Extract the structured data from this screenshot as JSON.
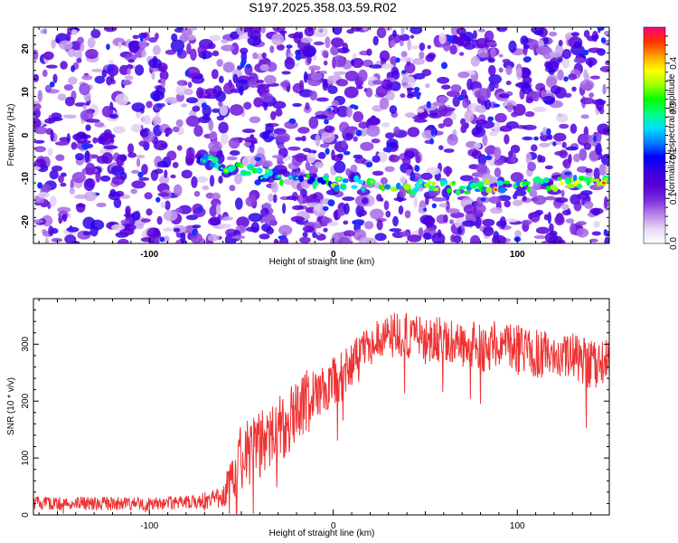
{
  "title": "S197.2025.358.03.59.R02",
  "chart_data": [
    {
      "type": "heatmap",
      "xlabel": "Height of straight line (km)",
      "ylabel": "Frequency (Hz)",
      "xlim": [
        -163,
        150
      ],
      "ylim": [
        -25,
        25
      ],
      "xticks": [
        -100,
        0,
        100
      ],
      "yticks": [
        -20,
        -10,
        0,
        10,
        20
      ],
      "colorbar": {
        "label": "Normalized spectral amplitude",
        "range": [
          0.0,
          0.48
        ],
        "ticks": [
          0.0,
          0.1,
          0.2,
          0.3,
          0.4
        ],
        "tick_labels": [
          "0.0",
          "0.1",
          "0.2",
          "0.3",
          "0.4"
        ],
        "colors": [
          "#ffffff",
          "#e8d8f4",
          "#b784e6",
          "#7a2fe0",
          "#5a00d8",
          "#3a00e0",
          "#0000ff",
          "#0080ff",
          "#00e0ff",
          "#00ff80",
          "#00ff00",
          "#a0ff00",
          "#ffff00",
          "#ffa000",
          "#ff3000",
          "#ff0080"
        ]
      },
      "signal_track": {
        "description_points_km": [
          -70,
          -50,
          -30,
          0,
          20,
          40,
          80,
          100,
          148
        ],
        "frequency_hz": [
          -6,
          -8,
          -10,
          -11,
          -11.5,
          -12,
          -12,
          -11.5,
          -11
        ]
      }
    },
    {
      "type": "line",
      "xlabel": "Height of straight line (km)",
      "ylabel": "SNR (10 * v/v)",
      "xlim": [
        -163,
        150
      ],
      "ylim": [
        0,
        380
      ],
      "xticks": [
        -100,
        0,
        100
      ],
      "yticks": [
        0,
        100,
        200,
        300
      ],
      "series": [
        {
          "name": "SNR",
          "color": "#ee3333",
          "x": [
            -163,
            -140,
            -120,
            -100,
            -80,
            -60,
            -55,
            -50,
            -45,
            -40,
            -35,
            -30,
            -25,
            -20,
            -15,
            -10,
            -5,
            0,
            5,
            10,
            15,
            20,
            25,
            30,
            40,
            50,
            60,
            70,
            80,
            90,
            100,
            110,
            120,
            130,
            140,
            150
          ],
          "mean": [
            20,
            20,
            20,
            20,
            22,
            30,
            70,
            100,
            110,
            120,
            140,
            150,
            160,
            180,
            200,
            210,
            225,
            235,
            245,
            260,
            280,
            300,
            310,
            315,
            315,
            305,
            310,
            300,
            295,
            300,
            290,
            285,
            280,
            275,
            265,
            270
          ],
          "noise": [
            12,
            12,
            12,
            12,
            12,
            18,
            45,
            60,
            60,
            60,
            55,
            60,
            55,
            60,
            55,
            50,
            45,
            45,
            45,
            45,
            40,
            40,
            45,
            40,
            40,
            45,
            40,
            40,
            45,
            45,
            45,
            45,
            40,
            45,
            45,
            40
          ]
        }
      ]
    }
  ]
}
